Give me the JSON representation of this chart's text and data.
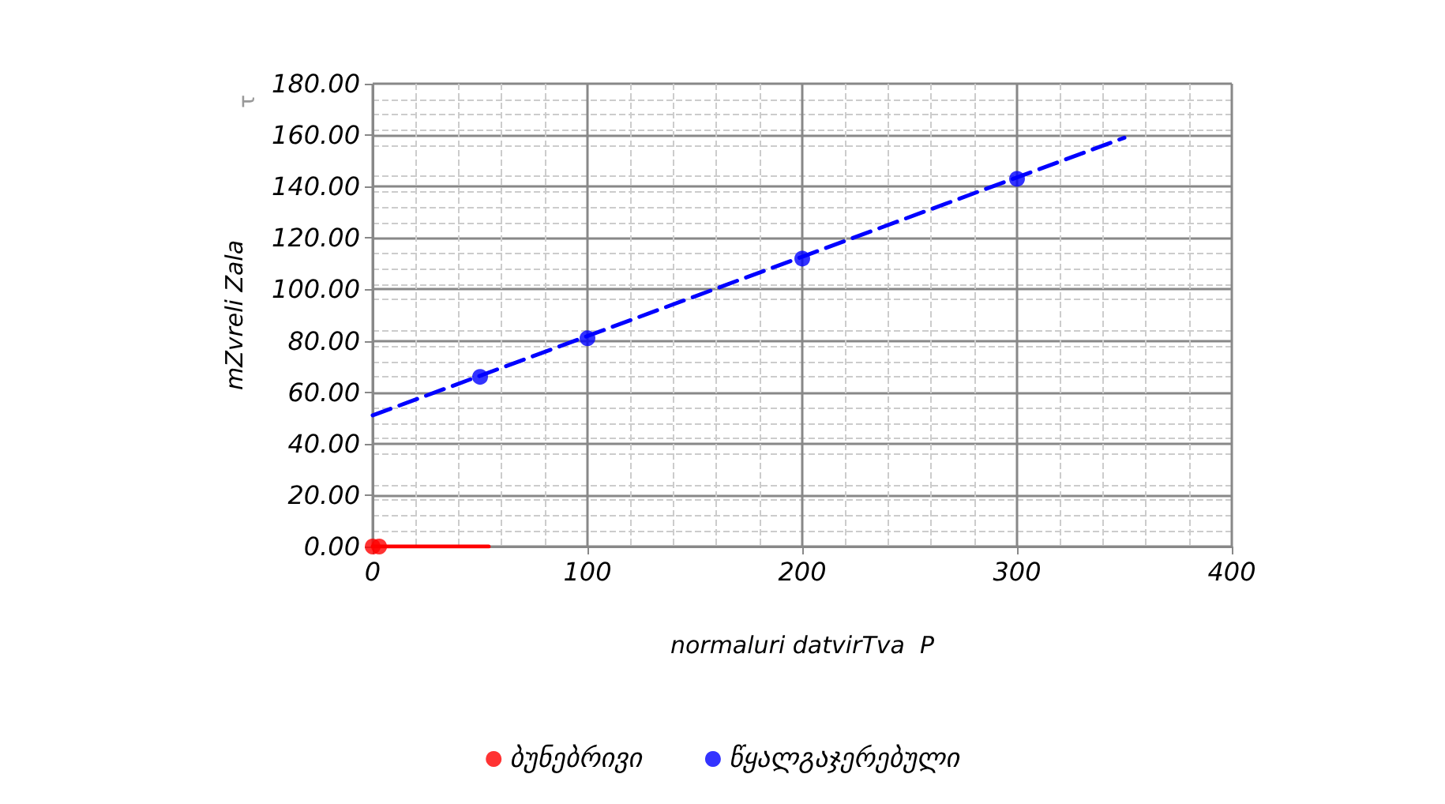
{
  "chart_data": {
    "type": "scatter",
    "xlabel": "normaluri datvirTva  P",
    "ylabel": "mZvreli Zala",
    "annotations": [
      "τ"
    ],
    "xlim": [
      0,
      400
    ],
    "xticks": [
      0,
      100,
      200,
      300,
      400
    ],
    "ylim": [
      0,
      180
    ],
    "yticks": [
      {
        "value": 0,
        "label": "0.00"
      },
      {
        "value": 20,
        "label": "20.00"
      },
      {
        "value": 40,
        "label": "40.00"
      },
      {
        "value": 60,
        "label": "60.00"
      },
      {
        "value": 80,
        "label": "80.00"
      },
      {
        "value": 100,
        "label": "100.00"
      },
      {
        "value": 120,
        "label": "120.00"
      },
      {
        "value": 140,
        "label": "140.00"
      },
      {
        "value": 160,
        "label": "160.00"
      },
      {
        "value": 180,
        "label": "180.00"
      }
    ],
    "grid": true,
    "legend": "bottom",
    "marker": "circle",
    "series": [
      {
        "name": "ბუნებრივი",
        "color": "#ff0000",
        "x": [
          0,
          3
        ],
        "values": [
          0,
          0
        ]
      },
      {
        "name": "წყალგაჯერებული",
        "color": "#0000ff",
        "x": [
          50,
          100,
          200,
          300
        ],
        "values": [
          66,
          81,
          112,
          143
        ]
      },
      {
        "type": "line",
        "color": "#ff0000",
        "x": [
          0,
          54
        ],
        "values": [
          0,
          0
        ],
        "line_style": "solid",
        "marker": "none"
      },
      {
        "type": "line",
        "color": "#0000ff",
        "x": [
          0,
          350
        ],
        "values": [
          51,
          159
        ],
        "line_style": "dashed",
        "marker": "none"
      }
    ]
  }
}
